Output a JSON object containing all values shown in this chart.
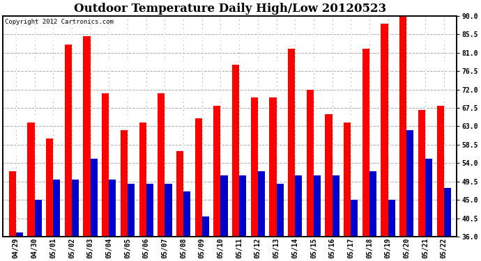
{
  "title": "Outdoor Temperature Daily High/Low 20120523",
  "copyright": "Copyright 2012 Cartronics.com",
  "dates": [
    "04/29",
    "04/30",
    "05/01",
    "05/02",
    "05/03",
    "05/04",
    "05/05",
    "05/06",
    "05/07",
    "05/08",
    "05/09",
    "05/10",
    "05/11",
    "05/12",
    "05/13",
    "05/14",
    "05/15",
    "05/16",
    "05/17",
    "05/18",
    "05/19",
    "05/20",
    "05/21",
    "05/22"
  ],
  "highs": [
    52,
    64,
    60,
    83,
    85,
    71,
    62,
    64,
    71,
    57,
    65,
    68,
    78,
    70,
    70,
    82,
    72,
    66,
    64,
    82,
    88,
    91,
    67,
    68
  ],
  "lows": [
    37,
    45,
    50,
    50,
    55,
    50,
    49,
    49,
    49,
    47,
    41,
    51,
    51,
    52,
    49,
    51,
    51,
    51,
    45,
    52,
    45,
    62,
    55,
    48
  ],
  "high_color": "#ff0000",
  "low_color": "#0000cc",
  "bg_color": "#ffffff",
  "grid_color": "#aaaaaa",
  "ylim_min": 36,
  "ylim_max": 90,
  "yticks": [
    36.0,
    40.5,
    45.0,
    49.5,
    54.0,
    58.5,
    63.0,
    67.5,
    72.0,
    76.5,
    81.0,
    85.5,
    90.0
  ],
  "bar_width": 0.38,
  "title_fontsize": 12,
  "tick_fontsize": 7,
  "copyright_fontsize": 6.5
}
